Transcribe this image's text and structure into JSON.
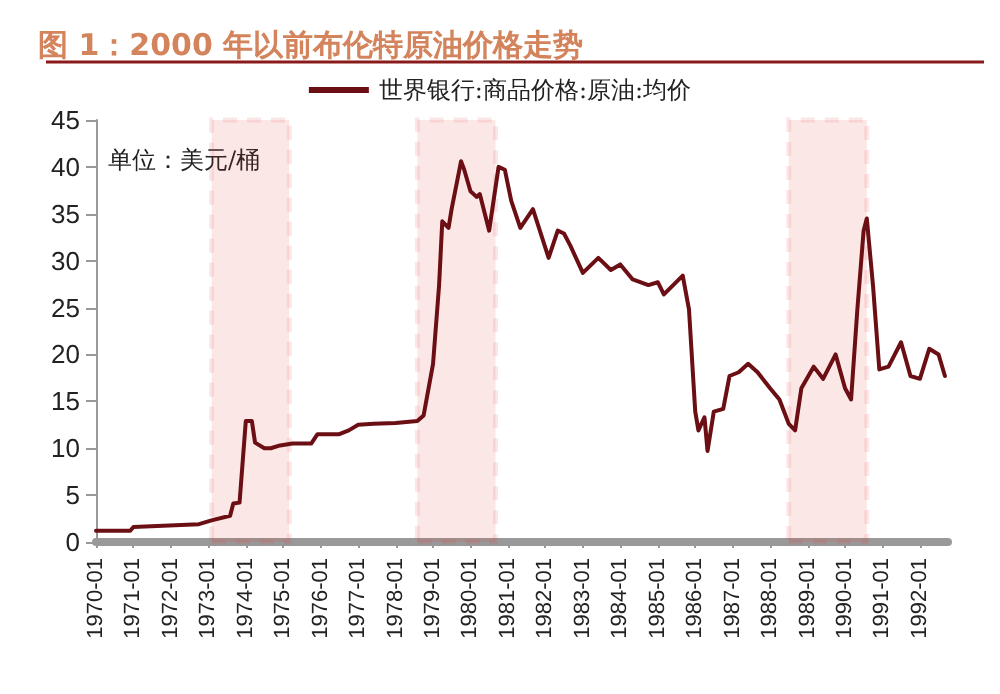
{
  "chart_data": {
    "type": "line",
    "title": "图 1：2000 年以前布伦特原油价格走势",
    "ylabel": "单位：美元/桶",
    "x": [
      "1970-01",
      "1970-12",
      "1971-01",
      "1972-10",
      "1973-02",
      "1973-08",
      "1973-09",
      "1973-11",
      "1974-01",
      "1974-03",
      "1974-04",
      "1974-07",
      "1974-09",
      "1974-12",
      "1975-04",
      "1975-10",
      "1975-12",
      "1976-07",
      "1976-10",
      "1977-01",
      "1977-06",
      "1978-01",
      "1978-08",
      "1978-10",
      "1979-01",
      "1979-03",
      "1979-04",
      "1979-06",
      "1979-07",
      "1979-10",
      "1979-11",
      "1980-01",
      "1980-03",
      "1980-04",
      "1980-07",
      "1980-10",
      "1980-12",
      "1981-02",
      "1981-05",
      "1981-09",
      "1982-02",
      "1982-05",
      "1982-07",
      "1982-09",
      "1983-01",
      "1983-06",
      "1983-10",
      "1984-01",
      "1984-05",
      "1984-10",
      "1985-01",
      "1985-03",
      "1985-09",
      "1985-11",
      "1986-01",
      "1986-02",
      "1986-04",
      "1986-05",
      "1986-07",
      "1986-10",
      "1986-12",
      "1987-03",
      "1987-06",
      "1987-09",
      "1988-01",
      "1988-04",
      "1988-07",
      "1988-09",
      "1988-11",
      "1989-03",
      "1989-06",
      "1989-10",
      "1990-01",
      "1990-03",
      "1990-05",
      "1990-07",
      "1990-08",
      "1990-10",
      "1990-12",
      "1991-03",
      "1991-07",
      "1991-10",
      "1992-01",
      "1992-04",
      "1992-07",
      "1992-09"
    ],
    "series": [
      {
        "name": "世界银行:商品价格:原油:均价",
        "color": "#6b0f14",
        "values": [
          1.2,
          1.2,
          1.6,
          1.9,
          2.3,
          2.8,
          4.1,
          4.2,
          12.9,
          12.9,
          10.6,
          10.0,
          10.0,
          10.3,
          10.5,
          10.5,
          11.5,
          11.5,
          11.9,
          12.5,
          12.6,
          12.7,
          12.9,
          13.5,
          19.0,
          27.4,
          34.2,
          33.5,
          35.5,
          40.6,
          39.7,
          37.4,
          36.8,
          37.1,
          33.2,
          40.0,
          39.7,
          36.4,
          33.5,
          35.5,
          30.3,
          33.2,
          32.9,
          31.6,
          28.7,
          30.3,
          29.0,
          29.6,
          28.0,
          27.4,
          27.7,
          26.4,
          28.4,
          24.8,
          13.9,
          11.9,
          13.3,
          9.7,
          13.9,
          14.2,
          17.7,
          18.1,
          19.0,
          18.1,
          16.4,
          15.2,
          12.6,
          11.9,
          16.4,
          18.7,
          17.4,
          20.0,
          16.4,
          15.2,
          24.8,
          33.2,
          34.5,
          27.3,
          18.4,
          18.7,
          21.3,
          17.7,
          17.4,
          20.6,
          20.0,
          17.7
        ]
      }
    ],
    "xlim": [
      "1970-01",
      "1992-10"
    ],
    "xticks": [
      "1970-01",
      "1971-01",
      "1972-01",
      "1973-01",
      "1974-01",
      "1975-01",
      "1976-01",
      "1977-01",
      "1978-01",
      "1979-01",
      "1980-01",
      "1981-01",
      "1982-01",
      "1983-01",
      "1984-01",
      "1985-01",
      "1986-01",
      "1987-01",
      "1988-01",
      "1989-01",
      "1990-01",
      "1991-01",
      "1992-01"
    ],
    "ylim": [
      0,
      45
    ],
    "yticks": [
      0,
      5,
      10,
      15,
      20,
      25,
      30,
      35,
      40,
      45
    ],
    "bands": [
      {
        "axis": "x",
        "from": "1973-02",
        "to": "1975-03",
        "color": "#e8383d"
      },
      {
        "axis": "x",
        "from": "1978-08",
        "to": "1980-09",
        "color": "#e8383d"
      },
      {
        "axis": "x",
        "from": "1988-07",
        "to": "1990-08",
        "color": "#e8383d"
      }
    ],
    "grid": false,
    "legend": "top",
    "line_style": "solid",
    "marker": "none"
  }
}
